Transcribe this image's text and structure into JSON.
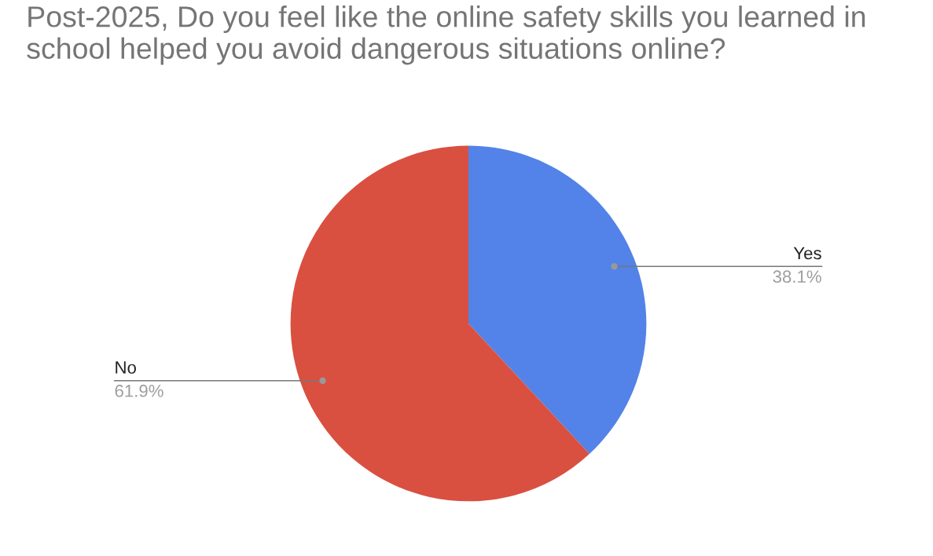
{
  "chart_data": {
    "type": "pie",
    "title": "Post-2025, Do you feel like the online safety skills you learned in school helped you avoid dangerous situations online?",
    "categories": [
      "Yes",
      "No"
    ],
    "values": [
      38.1,
      61.9
    ],
    "colors": [
      "#5383e8",
      "#d95040"
    ],
    "value_labels": [
      "38.1%",
      "61.9%"
    ]
  }
}
